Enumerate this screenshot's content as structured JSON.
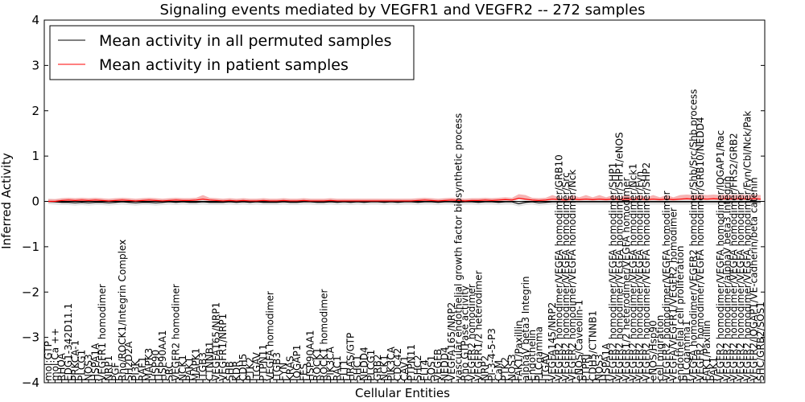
{
  "chart_data": {
    "type": "line",
    "title": "Signaling events mediated by VEGFR1 and VEGFR2 -- 272 samples",
    "xlabel": "Cellular Entities",
    "ylabel": "Inferred Activity",
    "ylim": [
      -4,
      4
    ],
    "yticks": [
      -4,
      -3,
      -2,
      -1,
      0,
      1,
      2,
      3,
      4
    ],
    "grid": false,
    "legend_position": "top-left",
    "categories": [
      "mol:GTP",
      "mol:Ca ++",
      "RHOA",
      "EDG1-342D11.1",
      "PRKCA-1",
      "PLCG1",
      "NOS3",
      "HSPA1A",
      "VEGFR1 homodimer",
      "NRP1",
      "PGF",
      "Rho/ROCK1/Integrin Complex",
      "SH2D2A",
      "PI3K",
      "RAF1",
      "MAPK3",
      "HSP90",
      "HSP90AA1",
      "SRC",
      "VEGFR2 homodimer",
      "NCK1",
      "PAK1",
      "MAPK1",
      "ITGB3",
      "CTNNB1",
      "VEGFA165/NRP1",
      "VEGFR1/NRP1",
      "SHB",
      "KDR",
      "CDH5",
      "PTK2",
      "ITGAV",
      "PTPN11",
      "VEGFA homodimer",
      "ITGB3",
      "FYN",
      "KRAS",
      "IQGAP1",
      "FES",
      "HSP90AA1",
      "ROCK1",
      "ROCK1 homodimer",
      "PIK3CA",
      "RAC1",
      "FLT1",
      "HRAS/GTP",
      "SHC1",
      "NEDD4",
      "PLCG1",
      "GRB2",
      "NCK1",
      "PIK3CA",
      "CDC42",
      "CAV1",
      "PTPN11",
      "SHC2",
      "FLT4",
      "SOS1",
      "VEGFB",
      "NEDD4",
      "VEGFA165/NRP2",
      "vascular endothelial growth factor biosynthetic process",
      "Rho GTPase activity",
      "VEGFR2 homodimer",
      "VEGFR1/2 heterodimer",
      "NRP2",
      "PI-3-4-5-P3",
      "CaM",
      "PTK2",
      "NOS3",
      "FAK1/Paxillin",
      "alphaV beta3 Integrin",
      "Endothelin",
      "PLCgamma",
      "ITGAV",
      "VEGFA145/NRP2",
      "VEGFR2 homodimer/VEGFA homodimer/GRB10",
      "VEGFR2 homodimer/VEGFA homodimer/Src",
      "VEGFR2 homodimer/VEGFA homodimer/Nck",
      "eNOS/Caveolin-1",
      "PTPRJ",
      "CDH5/CTNNB1",
      "NOS3",
      "HSPA1A",
      "VEGFR2 homodimer/VEGFA homodimer/SHP1",
      "VEGFR2 homodimer/VEGFA homodimer/SHP1/eNOS",
      "VEGFR1/2 heterodimer/VEGFA homodimer",
      "VEGFR2 homodimer/VEGFA homodimer/Nck1",
      "VEGFR2 homodimer/VEGFA homodimer/Fyn",
      "VEGFR2 homodimer/VEGFA homodimer/SHP2",
      "eNOS/Hsp90",
      "cell migration",
      "VEGFR2 homodimer/VEGFA homodimer",
      "VEGFA/VEGFR1/VEGFR2 homodimer",
      "endothelial cell proliferation",
      "PLCgamma1",
      "VEGFA homodimer/VEGFR2 homodimer/Shb/Src/Shb process",
      "VEGFR2 homodimer/VEGFA homodimer/GRB10/NEDD4",
      "FAK1/Paxillin",
      "PAK1",
      "VEGFR2 homodimer/VEGFA homodimer/IQGAP1/Rac",
      "VEGFR2 homodimer/alphaV beta3 Integrin",
      "VEGFR2 homodimer/VEGFA homodimer/FRS2/GRB2",
      "VEGFR2 homodimer/VEGFA homodimer",
      "VEGFR2 homodimer/VEGFA homodimer/Fyn/Cbl/Nck/Pak",
      "VEGFR2/IQGAP1/VE-cadherin/beta catenin",
      "SHC/GRB2/SOS1"
    ],
    "series": [
      {
        "name": "Mean activity in all permuted samples",
        "color": "#000000",
        "values": [
          0.0,
          -0.01,
          -0.02,
          -0.02,
          -0.03,
          -0.02,
          -0.03,
          -0.02,
          -0.02,
          -0.03,
          -0.02,
          -0.01,
          -0.02,
          -0.03,
          -0.02,
          -0.02,
          -0.03,
          -0.02,
          -0.01,
          -0.02,
          -0.01,
          -0.02,
          -0.02,
          -0.01,
          -0.02,
          -0.02,
          -0.02,
          -0.01,
          -0.02,
          -0.01,
          -0.02,
          -0.01,
          -0.02,
          -0.02,
          -0.02,
          -0.01,
          -0.02,
          -0.02,
          -0.01,
          -0.01,
          -0.02,
          -0.02,
          -0.01,
          -0.02,
          -0.01,
          -0.02,
          -0.01,
          -0.02,
          -0.01,
          -0.01,
          -0.02,
          -0.01,
          -0.02,
          -0.01,
          -0.01,
          -0.02,
          -0.01,
          -0.01,
          -0.02,
          -0.01,
          -0.01,
          -0.02,
          -0.01,
          -0.01,
          -0.02,
          -0.01,
          -0.01,
          -0.02,
          -0.01,
          -0.01,
          -0.05,
          -0.02,
          -0.01,
          -0.03,
          -0.02,
          -0.01,
          -0.01,
          -0.01,
          -0.01,
          -0.01,
          -0.01,
          -0.01,
          -0.01,
          -0.01,
          -0.01,
          -0.01,
          -0.01,
          -0.01,
          -0.01,
          -0.01,
          -0.01,
          -0.01,
          -0.01,
          -0.01,
          -0.01,
          -0.01,
          -0.01,
          -0.01,
          -0.01,
          -0.01,
          -0.01,
          -0.01,
          -0.01,
          -0.01,
          -0.01,
          -0.01,
          -0.01
        ]
      },
      {
        "name": "Mean activity in patient samples",
        "color": "#ff0000",
        "fill": "#f08080",
        "values": [
          0.0,
          0.0,
          0.02,
          0.03,
          0.02,
          0.03,
          0.02,
          0.03,
          0.02,
          0.01,
          0.02,
          0.03,
          0.02,
          0.01,
          0.02,
          0.03,
          0.02,
          0.01,
          0.02,
          0.03,
          0.02,
          0.02,
          0.03,
          0.05,
          0.03,
          0.02,
          0.01,
          0.02,
          0.01,
          0.02,
          0.01,
          0.01,
          0.02,
          0.01,
          0.01,
          0.02,
          0.01,
          0.01,
          0.02,
          0.01,
          0.01,
          0.01,
          0.02,
          0.01,
          0.01,
          0.01,
          0.01,
          0.01,
          0.01,
          0.01,
          0.01,
          0.01,
          0.01,
          0.01,
          0.01,
          0.02,
          0.03,
          0.02,
          0.01,
          0.02,
          0.03,
          0.02,
          0.01,
          0.02,
          0.02,
          0.03,
          0.02,
          0.03,
          0.04,
          0.03,
          0.07,
          0.05,
          0.03,
          0.02,
          0.03,
          0.05,
          0.04,
          0.03,
          0.05,
          0.04,
          0.05,
          0.04,
          0.05,
          0.04,
          0.05,
          0.04,
          0.05,
          0.04,
          0.05,
          0.04,
          0.05,
          0.04,
          0.05,
          0.04,
          0.05,
          0.06,
          0.05,
          0.06,
          0.05,
          0.06,
          0.05,
          0.06,
          0.05,
          0.06,
          0.05,
          0.06,
          0.05
        ]
      }
    ]
  }
}
